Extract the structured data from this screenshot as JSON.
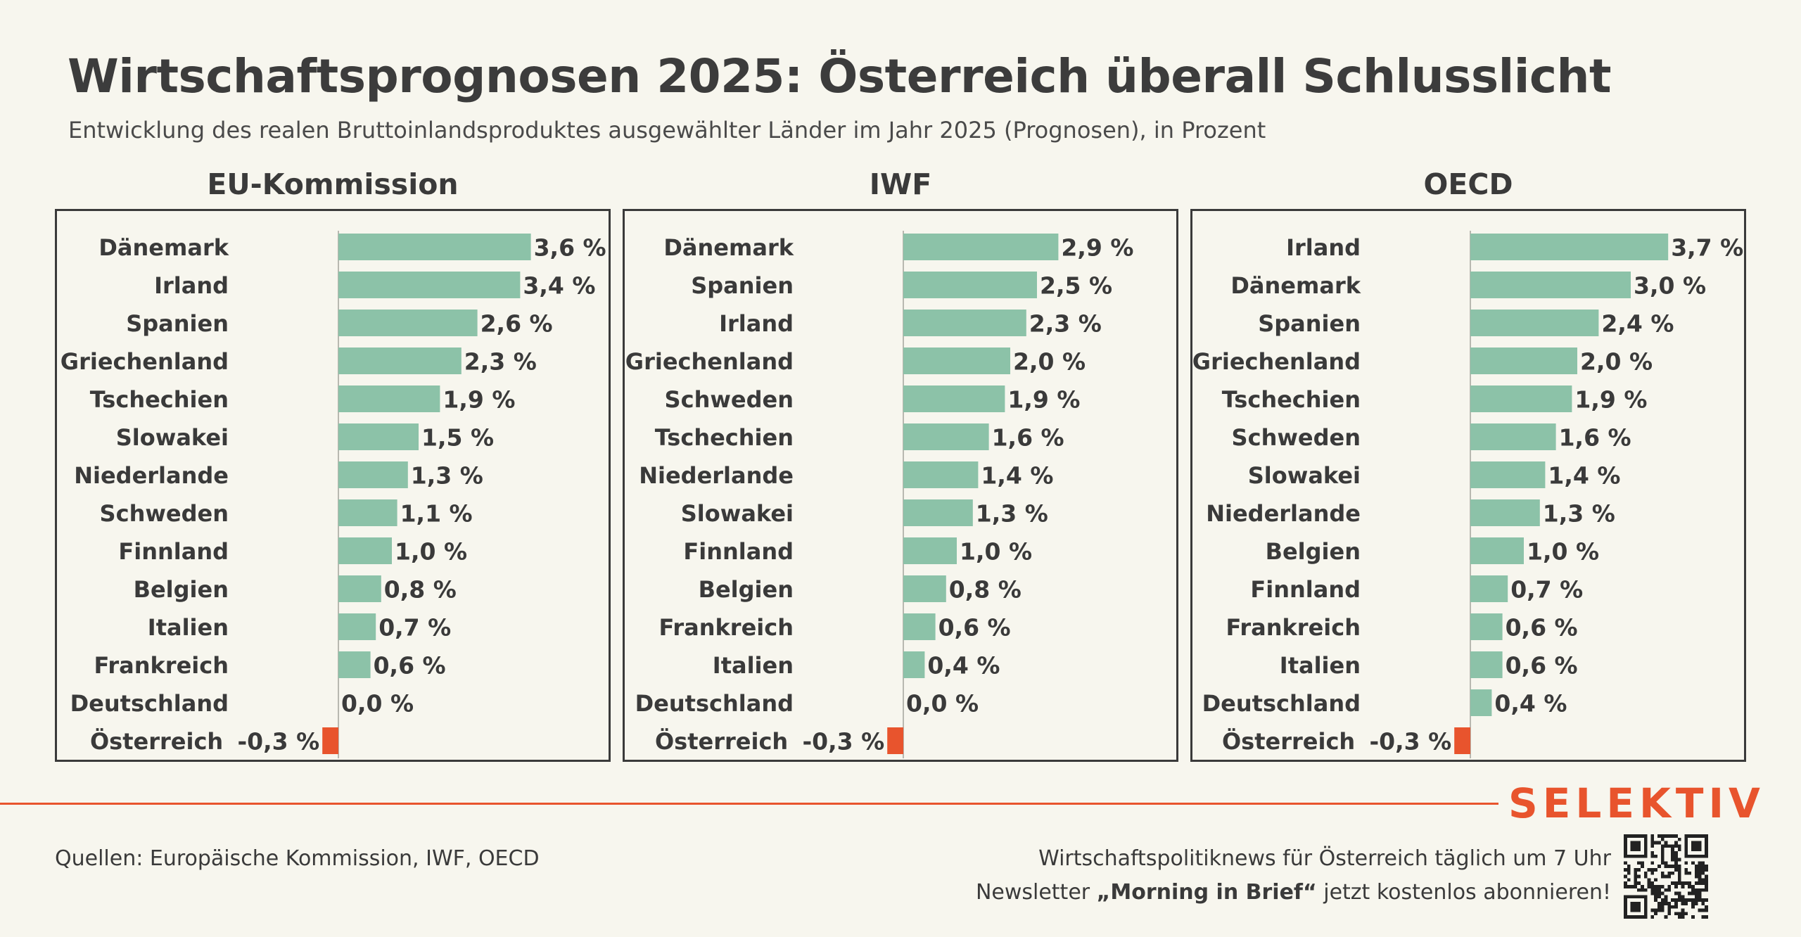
{
  "header": {
    "title": "Wirtschaftsprognosen 2025: Österreich überall Schlusslicht",
    "subtitle": "Entwicklung des realen Bruttoinlandsproduktes ausgewählter Länder im Jahr 2025 (Prognosen), in Prozent"
  },
  "colors": {
    "positive_bar": "#8cc2a8",
    "negative_bar": "#e8542d",
    "brand": "#e8542d",
    "text": "#3a3a3a"
  },
  "chart_data": [
    {
      "type": "bar",
      "orientation": "horizontal",
      "title": "EU-Kommission",
      "categories": [
        "Dänemark",
        "Irland",
        "Spanien",
        "Griechenland",
        "Tschechien",
        "Slowakei",
        "Niederlande",
        "Schweden",
        "Finnland",
        "Belgien",
        "Italien",
        "Frankreich",
        "Deutschland",
        "Österreich"
      ],
      "values": [
        3.6,
        3.4,
        2.6,
        2.3,
        1.9,
        1.5,
        1.3,
        1.1,
        1.0,
        0.8,
        0.7,
        0.6,
        0.0,
        -0.3
      ],
      "labels": [
        "3,6 %",
        "3,4 %",
        "2,6 %",
        "2,3 %",
        "1,9 %",
        "1,5 %",
        "1,3 %",
        "1,1 %",
        "1,0 %",
        "0,8 %",
        "0,7 %",
        "0,6 %",
        "0,0 %",
        "-0,3 %"
      ]
    },
    {
      "type": "bar",
      "orientation": "horizontal",
      "title": "IWF",
      "categories": [
        "Dänemark",
        "Spanien",
        "Irland",
        "Griechenland",
        "Schweden",
        "Tschechien",
        "Niederlande",
        "Slowakei",
        "Finnland",
        "Belgien",
        "Frankreich",
        "Italien",
        "Deutschland",
        "Österreich"
      ],
      "values": [
        2.9,
        2.5,
        2.3,
        2.0,
        1.9,
        1.6,
        1.4,
        1.3,
        1.0,
        0.8,
        0.6,
        0.4,
        0.0,
        -0.3
      ],
      "labels": [
        "2,9 %",
        "2,5 %",
        "2,3 %",
        "2,0 %",
        "1,9 %",
        "1,6 %",
        "1,4 %",
        "1,3 %",
        "1,0 %",
        "0,8 %",
        "0,6 %",
        "0,4 %",
        "0,0 %",
        "-0,3 %"
      ]
    },
    {
      "type": "bar",
      "orientation": "horizontal",
      "title": "OECD",
      "categories": [
        "Irland",
        "Dänemark",
        "Spanien",
        "Griechenland",
        "Tschechien",
        "Schweden",
        "Slowakei",
        "Niederlande",
        "Belgien",
        "Finnland",
        "Frankreich",
        "Italien",
        "Deutschland",
        "Österreich"
      ],
      "values": [
        3.7,
        3.0,
        2.4,
        2.0,
        1.9,
        1.6,
        1.4,
        1.3,
        1.0,
        0.7,
        0.6,
        0.6,
        0.4,
        -0.3
      ],
      "labels": [
        "3,7 %",
        "3,0 %",
        "2,4 %",
        "2,0 %",
        "1,9 %",
        "1,6 %",
        "1,4 %",
        "1,3 %",
        "1,0 %",
        "0,7 %",
        "0,6 %",
        "0,6 %",
        "0,4 %",
        "-0,3 %"
      ]
    }
  ],
  "footer": {
    "brand": "SELEKTIV",
    "source": "Quellen: Europäische Kommission, IWF, OECD",
    "promo_line1": "Wirtschaftspolitiknews für Österreich täglich um 7 Uhr",
    "promo_line2_pre": "Newsletter ",
    "promo_line2_bold": "„Morning in Brief“",
    "promo_line2_post": " jetzt kostenlos abonnieren!",
    "qr_icon": "qr-code-icon"
  }
}
